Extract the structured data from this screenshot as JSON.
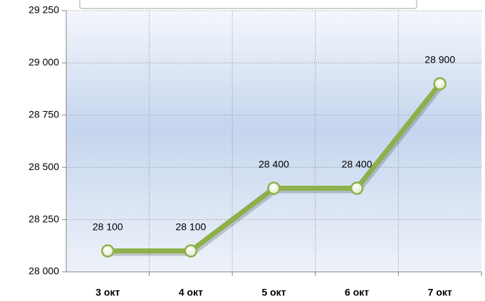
{
  "chart_data": {
    "type": "line",
    "categories": [
      "3 окт",
      "4 окт",
      "5 окт",
      "6 окт",
      "7 окт"
    ],
    "values": [
      28100,
      28100,
      28400,
      28400,
      28900
    ],
    "value_labels": [
      "28 100",
      "28 100",
      "28 400",
      "28 400",
      "28 900"
    ],
    "color": "#8db04a",
    "ylim": [
      28000,
      29250
    ],
    "yticks": [
      {
        "value": 28000,
        "label": "28 000"
      },
      {
        "value": 28250,
        "label": "28 250"
      },
      {
        "value": 28500,
        "label": "28 500"
      },
      {
        "value": 28750,
        "label": "28 750"
      },
      {
        "value": 29000,
        "label": "29 000"
      },
      {
        "value": 29250,
        "label": "29 250"
      }
    ],
    "grid": true
  }
}
